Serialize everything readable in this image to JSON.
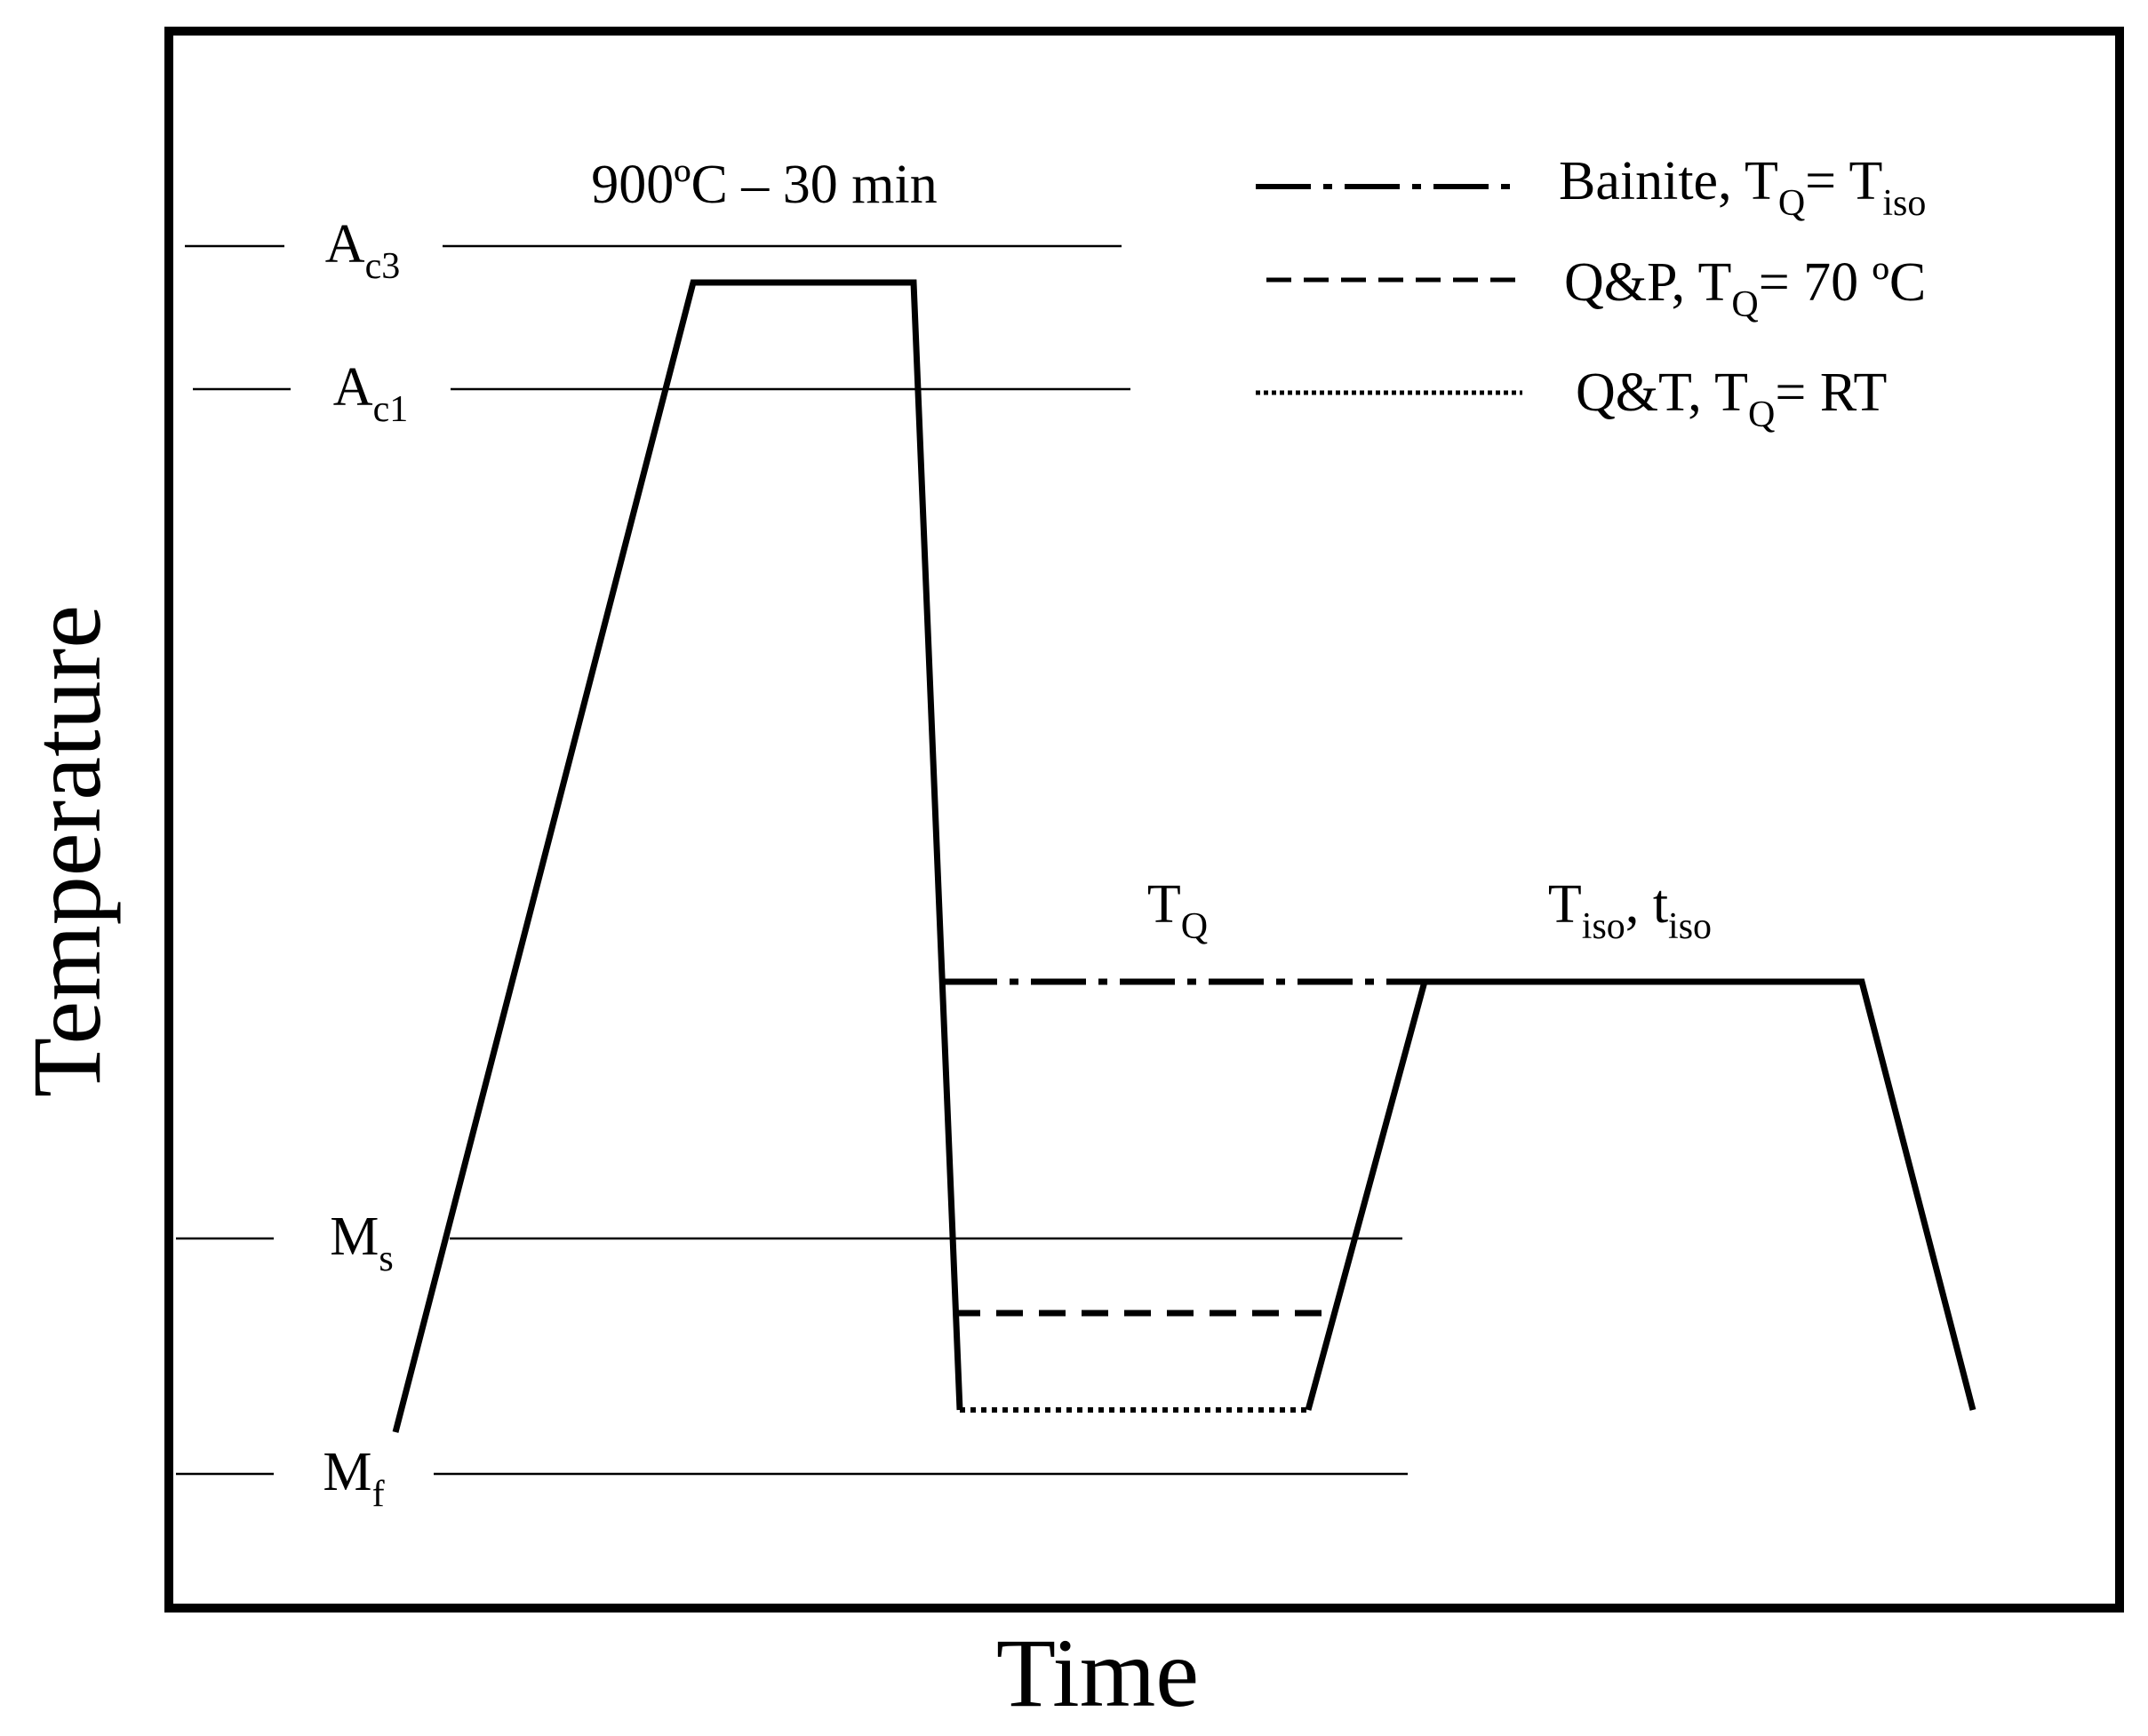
{
  "axes": {
    "x_label": "Time",
    "y_label": "Temperature"
  },
  "temperature_lines": [
    {
      "main": "A",
      "sub": "c3"
    },
    {
      "main": "A",
      "sub": "c1"
    },
    {
      "main": "M",
      "sub": "s"
    },
    {
      "main": "M",
      "sub": "f"
    }
  ],
  "annotations": {
    "austenitization": "900ºC – 30 min",
    "tq": {
      "main": "T",
      "sub": "Q"
    },
    "isothermal": {
      "t_main": "T",
      "t_sub": "iso",
      "sep": ", ",
      "time_main": "t",
      "time_sub": "iso"
    }
  },
  "legend": [
    {
      "name": "Bainite",
      "line_style": "dash-dot",
      "pre": "Bainite, T",
      "sub1": "Q",
      "mid": "= T",
      "sub2": "iso",
      "post": ""
    },
    {
      "name": "Q&P",
      "line_style": "dashed",
      "pre": "Q&P, T",
      "sub1": "Q",
      "mid": "= 70 ºC",
      "sub2": "",
      "post": ""
    },
    {
      "name": "Q&T",
      "line_style": "dotted",
      "pre": "Q&T, T",
      "sub1": "Q",
      "mid": "= RT",
      "sub2": "",
      "post": ""
    }
  ]
}
